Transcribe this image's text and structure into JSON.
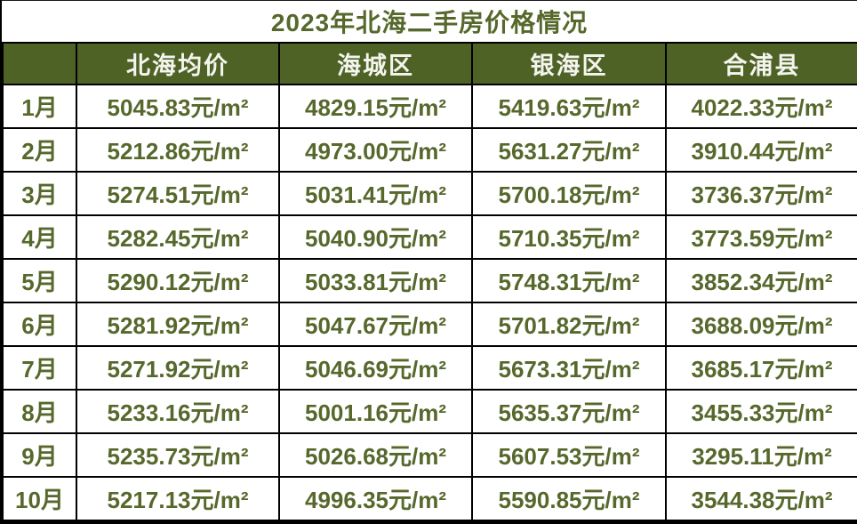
{
  "title": "2023年北海二手房价格情况",
  "table": {
    "columns": [
      "",
      "北海均价",
      "海城区",
      "银海区",
      "合浦县"
    ],
    "rows": [
      {
        "month": "1月",
        "values": [
          "5045.83元/m²",
          "4829.15元/m²",
          "5419.63元/m²",
          "4022.33元/m²"
        ]
      },
      {
        "month": "2月",
        "values": [
          "5212.86元/m²",
          "4973.00元/m²",
          "5631.27元/m²",
          "3910.44元/m²"
        ]
      },
      {
        "month": "3月",
        "values": [
          "5274.51元/m²",
          "5031.41元/m²",
          "5700.18元/m²",
          "3736.37元/m²"
        ]
      },
      {
        "month": "4月",
        "values": [
          "5282.45元/m²",
          "5040.90元/m²",
          "5710.35元/m²",
          "3773.59元/m²"
        ]
      },
      {
        "month": "5月",
        "values": [
          "5290.12元/m²",
          "5033.81元/m²",
          "5748.31元/m²",
          "3852.34元/m²"
        ]
      },
      {
        "month": "6月",
        "values": [
          "5281.92元/m²",
          "5047.67元/m²",
          "5701.82元/m²",
          "3688.09元/m²"
        ]
      },
      {
        "month": "7月",
        "values": [
          "5271.92元/m²",
          "5046.69元/m²",
          "5673.31元/m²",
          "3685.17元/m²"
        ]
      },
      {
        "month": "8月",
        "values": [
          "5233.16元/m²",
          "5001.16元/m²",
          "5635.37元/m²",
          "3455.33元/m²"
        ]
      },
      {
        "month": "9月",
        "values": [
          "5235.73元/m²",
          "5026.68元/m²",
          "5607.53元/m²",
          "3295.11元/m²"
        ]
      },
      {
        "month": "10月",
        "values": [
          "5217.13元/m²",
          "4996.35元/m²",
          "5590.85元/m²",
          "3544.38元/m²"
        ]
      }
    ]
  },
  "colors": {
    "header_background": "#4e6226",
    "header_text": "#f4f4ee",
    "body_text": "#57682c",
    "grid_border": "#000000",
    "background": "#ffffff"
  },
  "chart_data": {
    "type": "table",
    "title": "2023年北海二手房价格情况",
    "unit": "元/m²",
    "categories": [
      "1月",
      "2月",
      "3月",
      "4月",
      "5月",
      "6月",
      "7月",
      "8月",
      "9月",
      "10月"
    ],
    "series": [
      {
        "name": "北海均价",
        "values": [
          5045.83,
          5212.86,
          5274.51,
          5282.45,
          5290.12,
          5281.92,
          5271.92,
          5233.16,
          5235.73,
          5217.13
        ]
      },
      {
        "name": "海城区",
        "values": [
          4829.15,
          4973.0,
          5031.41,
          5040.9,
          5033.81,
          5047.67,
          5046.69,
          5001.16,
          5026.68,
          4996.35
        ]
      },
      {
        "name": "银海区",
        "values": [
          5419.63,
          5631.27,
          5700.18,
          5710.35,
          5748.31,
          5701.82,
          5673.31,
          5635.37,
          5607.53,
          5590.85
        ]
      },
      {
        "name": "合浦县",
        "values": [
          4022.33,
          3910.44,
          3736.37,
          3773.59,
          3852.34,
          3688.09,
          3685.17,
          3455.33,
          3295.11,
          3544.38
        ]
      }
    ]
  }
}
